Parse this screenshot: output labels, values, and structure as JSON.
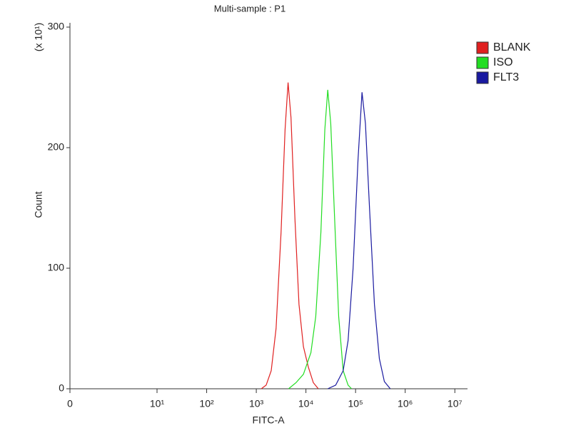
{
  "chart_data": {
    "type": "line",
    "title": "Multi-sample : P1",
    "xlabel": "FITC-A",
    "ylabel": "Count",
    "y_multiplier": "(x 10¹)",
    "xscale": "log",
    "xlim": [
      0,
      18000000
    ],
    "xticks": [
      0,
      {
        "value": 10,
        "label": "10¹"
      },
      {
        "value": 100,
        "label": "10²"
      },
      {
        "value": 1000,
        "label": "10³"
      },
      {
        "value": 10000,
        "label": "10⁴"
      },
      {
        "value": 100000,
        "label": "10⁵"
      },
      {
        "value": 1000000,
        "label": "10⁶"
      },
      {
        "value": 10000000,
        "label": "10⁷"
      }
    ],
    "ylim": [
      0,
      300
    ],
    "yticks": [
      0,
      100,
      200,
      300
    ],
    "legend": "right",
    "series": [
      {
        "name": "BLANK",
        "color": "#e02020",
        "x": [
          1260,
          1580,
          2000,
          2500,
          3160,
          3800,
          4370,
          5000,
          6030,
          7240,
          8910,
          11200,
          14100,
          17800
        ],
        "values": [
          0,
          3,
          15,
          50,
          130,
          215,
          254,
          225,
          140,
          70,
          35,
          18,
          5,
          0
        ]
      },
      {
        "name": "ISO",
        "color": "#22dd22",
        "x": [
          4470,
          6310,
          8910,
          12600,
          15800,
          20000,
          24000,
          27500,
          31600,
          38000,
          45700,
          56200,
          70800,
          83200
        ],
        "values": [
          0,
          5,
          12,
          30,
          60,
          130,
          215,
          248,
          220,
          140,
          60,
          15,
          3,
          0
        ]
      },
      {
        "name": "FLT3",
        "color": "#1a1aa0",
        "x": [
          27500,
          39800,
          56200,
          70800,
          89100,
          112000,
          135000,
          158000,
          191000,
          240000,
          302000,
          380000,
          501000
        ],
        "values": [
          0,
          3,
          15,
          40,
          100,
          190,
          246,
          220,
          150,
          70,
          25,
          6,
          0
        ]
      }
    ]
  }
}
